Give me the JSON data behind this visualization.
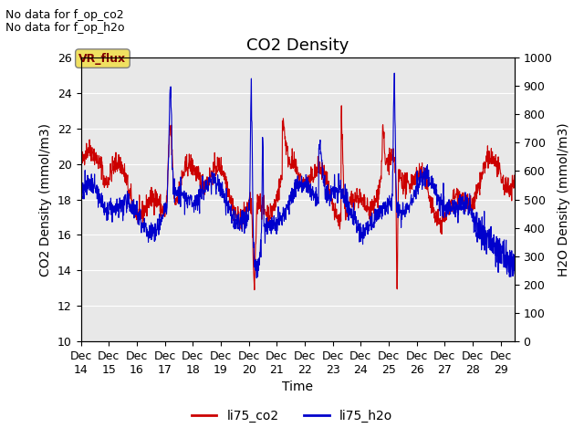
{
  "title": "CO2 Density",
  "xlabel": "Time",
  "ylabel_left": "CO2 Density (mmol/m3)",
  "ylabel_right": "H2O Density (mmol/m3)",
  "ylim_left": [
    10,
    26
  ],
  "ylim_right": [
    0,
    1000
  ],
  "yticks_left": [
    10,
    12,
    14,
    16,
    18,
    20,
    22,
    24,
    26
  ],
  "yticks_right": [
    0,
    100,
    200,
    300,
    400,
    500,
    600,
    700,
    800,
    900,
    1000
  ],
  "xtick_labels": [
    "Dec 14",
    "Dec 15",
    "Dec 16",
    "Dec 17",
    "Dec 18",
    "Dec 19",
    "Dec 20",
    "Dec 21",
    "Dec 22",
    "Dec 23",
    "Dec 24",
    "Dec 25",
    "Dec 26",
    "Dec 27",
    "Dec 28",
    "Dec 29"
  ],
  "annotations_top_left": [
    "No data for f_op_co2",
    "No data for f_op_h2o"
  ],
  "vr_flux_label": "VR_flux",
  "legend_entries": [
    "li75_co2",
    "li75_h2o"
  ],
  "legend_colors": [
    "#cc0000",
    "#0000cc"
  ],
  "line_color_co2": "#cc0000",
  "line_color_h2o": "#0000cc",
  "background_color": "#e8e8e8",
  "fig_background": "#ffffff",
  "annotation_fontsize": 9,
  "title_fontsize": 13,
  "axis_label_fontsize": 10,
  "tick_fontsize": 9
}
